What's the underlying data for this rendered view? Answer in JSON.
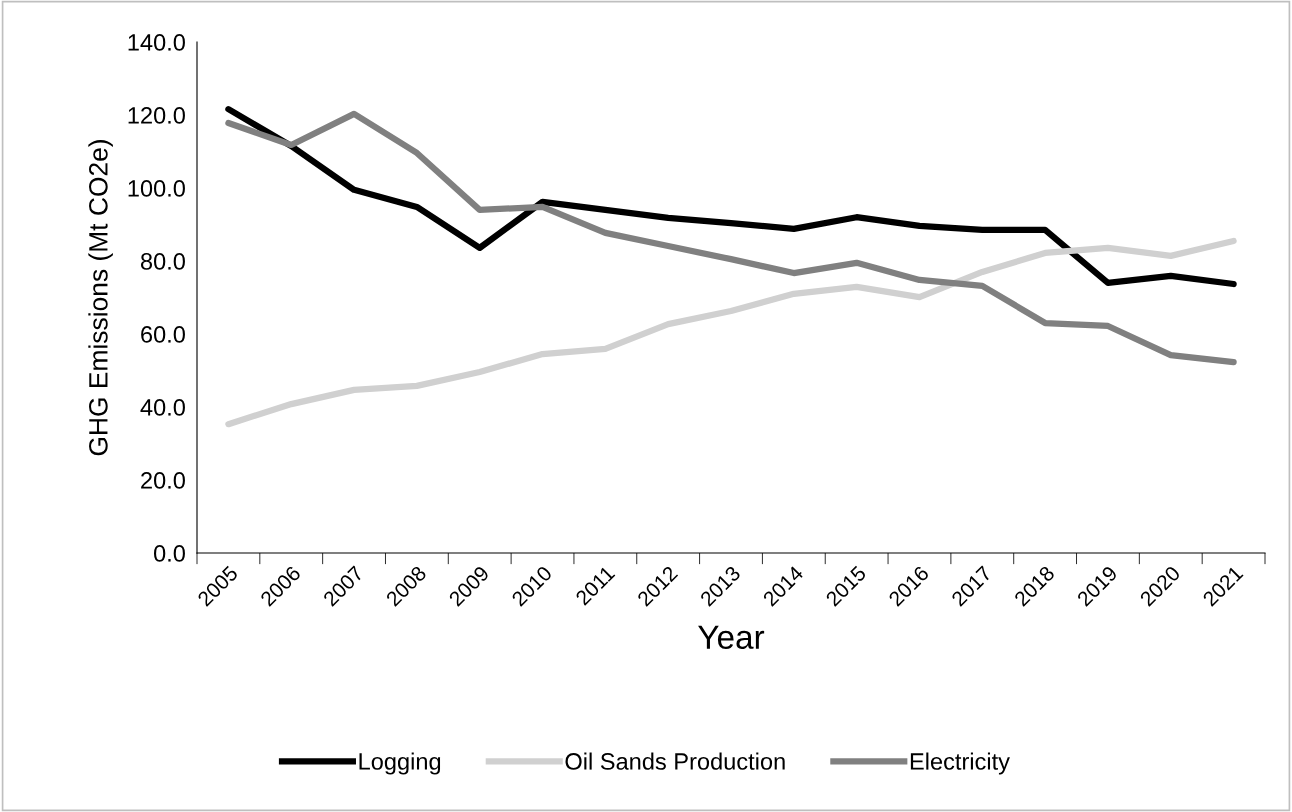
{
  "chart_data": {
    "type": "line",
    "xlabel": "Year",
    "ylabel": "GHG Emissions (Mt CO2e)",
    "categories": [
      "2005",
      "2006",
      "2007",
      "2008",
      "2009",
      "2010",
      "2011",
      "2012",
      "2013",
      "2014",
      "2015",
      "2016",
      "2017",
      "2018",
      "2019",
      "2020",
      "2021"
    ],
    "series": [
      {
        "name": "Logging",
        "color": "#000000",
        "values": [
          121.6,
          111.5,
          99.5,
          94.8,
          83.6,
          96.2,
          94.0,
          91.8,
          90.4,
          88.8,
          92.0,
          89.6,
          88.5,
          88.5,
          74.0,
          75.9,
          73.7
        ]
      },
      {
        "name": "Oil Sands Production",
        "color": "#d0d0d0",
        "values": [
          35.3,
          40.8,
          44.7,
          45.8,
          49.6,
          54.5,
          55.9,
          62.7,
          66.3,
          71.0,
          72.9,
          70.1,
          77.0,
          82.2,
          83.6,
          81.4,
          85.5
        ]
      },
      {
        "name": "Electricity",
        "color": "#808080",
        "values": [
          117.8,
          111.8,
          120.3,
          109.6,
          94.0,
          94.8,
          87.7,
          84.1,
          80.5,
          76.7,
          79.5,
          74.8,
          73.2,
          63.0,
          62.2,
          54.2,
          52.3
        ]
      }
    ],
    "ylim": [
      0,
      140
    ],
    "yticks": [
      {
        "value": 0,
        "label": "0.0"
      },
      {
        "value": 20,
        "label": "20.0"
      },
      {
        "value": 40,
        "label": "40.0"
      },
      {
        "value": 60,
        "label": "60.0"
      },
      {
        "value": 80,
        "label": "80.0"
      },
      {
        "value": 100,
        "label": "100.0"
      },
      {
        "value": 120,
        "label": "120.0"
      },
      {
        "value": 140,
        "label": "140.0"
      }
    ],
    "grid": false,
    "legend": "bottom",
    "marker": "none",
    "line_style": "solid"
  }
}
